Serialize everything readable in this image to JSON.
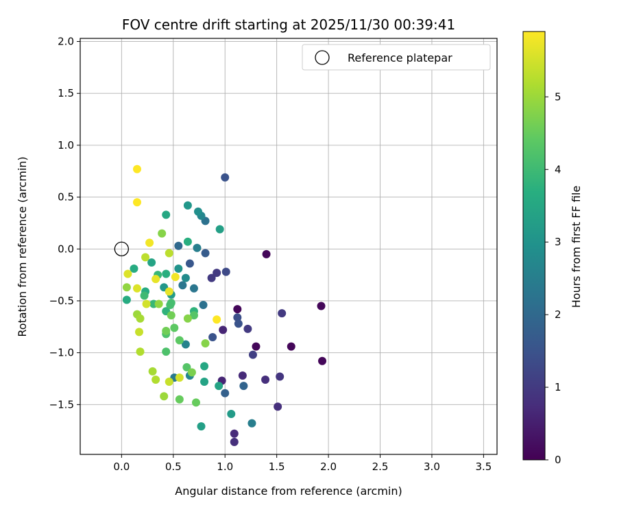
{
  "chart_data": {
    "type": "scatter",
    "title": "FOV centre drift starting at 2025/11/30 00:39:41",
    "xlabel": "Angular distance from reference (arcmin)",
    "ylabel": "Rotation from reference (arcmin)",
    "xlim": [
      -0.4,
      3.63
    ],
    "ylim": [
      -1.98,
      2.03
    ],
    "xticks": [
      0.0,
      0.5,
      1.0,
      1.5,
      2.0,
      2.5,
      3.0,
      3.5
    ],
    "xtick_labels": [
      "0.0",
      "0.5",
      "1.0",
      "1.5",
      "2.0",
      "2.5",
      "3.0",
      "3.5"
    ],
    "yticks": [
      2.0,
      1.5,
      1.0,
      0.5,
      0.0,
      -0.5,
      -1.0,
      -1.5
    ],
    "ytick_labels": [
      "2.0",
      "1.5",
      "1.0",
      "0.5",
      "0.0",
      "−0.5",
      "−1.0",
      "−1.5"
    ],
    "grid": true,
    "legend": {
      "position": "top-right",
      "entries": [
        "Reference platepar"
      ]
    },
    "reference_point": {
      "x": 0.0,
      "y": 0.0
    },
    "colorbar": {
      "label": "Hours from first FF file",
      "range": [
        0,
        5.9
      ],
      "ticks": [
        0,
        1,
        2,
        3,
        4,
        5
      ],
      "tick_labels": [
        "0",
        "1",
        "2",
        "3",
        "4",
        "5"
      ],
      "colormap": "viridis"
    },
    "points": [
      {
        "x": 1.4,
        "y": -0.05,
        "h": 0.1
      },
      {
        "x": 1.12,
        "y": -0.58,
        "h": 0.1
      },
      {
        "x": 1.3,
        "y": -0.94,
        "h": 0.1
      },
      {
        "x": 1.64,
        "y": -0.94,
        "h": 0.1
      },
      {
        "x": 1.93,
        "y": -0.55,
        "h": 0.1
      },
      {
        "x": 1.94,
        "y": -1.08,
        "h": 0.1
      },
      {
        "x": 0.98,
        "y": -0.78,
        "h": 0.6
      },
      {
        "x": 0.97,
        "y": -1.27,
        "h": 0.6
      },
      {
        "x": 1.17,
        "y": -1.22,
        "h": 0.7
      },
      {
        "x": 1.09,
        "y": -1.78,
        "h": 0.7
      },
      {
        "x": 1.09,
        "y": -1.86,
        "h": 0.8
      },
      {
        "x": 1.39,
        "y": -1.26,
        "h": 0.8
      },
      {
        "x": 1.51,
        "y": -1.52,
        "h": 0.8
      },
      {
        "x": 0.87,
        "y": -0.28,
        "h": 1.0
      },
      {
        "x": 0.92,
        "y": -0.23,
        "h": 1.0
      },
      {
        "x": 1.53,
        "y": -1.23,
        "h": 0.9
      },
      {
        "x": 1.55,
        "y": -0.62,
        "h": 1.0
      },
      {
        "x": 1.22,
        "y": -0.77,
        "h": 1.0
      },
      {
        "x": 1.27,
        "y": -1.02,
        "h": 1.1
      },
      {
        "x": 1.01,
        "y": -0.22,
        "h": 1.3
      },
      {
        "x": 1.12,
        "y": -0.66,
        "h": 1.4
      },
      {
        "x": 1.13,
        "y": -0.72,
        "h": 1.5
      },
      {
        "x": 0.88,
        "y": -0.85,
        "h": 1.5
      },
      {
        "x": 1.0,
        "y": 0.69,
        "h": 1.5
      },
      {
        "x": 0.66,
        "y": -0.14,
        "h": 1.6
      },
      {
        "x": 0.81,
        "y": -0.04,
        "h": 1.7
      },
      {
        "x": 1.0,
        "y": -1.39,
        "h": 1.8
      },
      {
        "x": 1.18,
        "y": -1.32,
        "h": 1.9
      },
      {
        "x": 0.55,
        "y": 0.03,
        "h": 2.0
      },
      {
        "x": 0.81,
        "y": 0.27,
        "h": 2.2
      },
      {
        "x": 0.79,
        "y": -0.54,
        "h": 2.2
      },
      {
        "x": 0.7,
        "y": -0.38,
        "h": 2.3
      },
      {
        "x": 0.59,
        "y": -0.35,
        "h": 2.3
      },
      {
        "x": 0.51,
        "y": -1.24,
        "h": 2.4
      },
      {
        "x": 1.26,
        "y": -1.68,
        "h": 2.5
      },
      {
        "x": 0.73,
        "y": 0.01,
        "h": 2.5
      },
      {
        "x": 0.62,
        "y": -0.92,
        "h": 2.6
      },
      {
        "x": 0.66,
        "y": -1.22,
        "h": 2.7
      },
      {
        "x": 0.77,
        "y": 0.32,
        "h": 2.7
      },
      {
        "x": 0.62,
        "y": -0.28,
        "h": 2.8
      },
      {
        "x": 0.74,
        "y": 0.36,
        "h": 2.9
      },
      {
        "x": 0.55,
        "y": -0.19,
        "h": 3.0
      },
      {
        "x": 0.64,
        "y": 0.42,
        "h": 3.1
      },
      {
        "x": 0.41,
        "y": -0.37,
        "h": 3.1
      },
      {
        "x": 0.48,
        "y": -0.44,
        "h": 3.2
      },
      {
        "x": 1.06,
        "y": -1.59,
        "h": 3.2
      },
      {
        "x": 0.95,
        "y": 0.19,
        "h": 3.3
      },
      {
        "x": 0.77,
        "y": -1.71,
        "h": 3.3
      },
      {
        "x": 0.29,
        "y": -0.13,
        "h": 3.4
      },
      {
        "x": 0.8,
        "y": -1.28,
        "h": 3.4
      },
      {
        "x": 0.94,
        "y": -1.32,
        "h": 3.4
      },
      {
        "x": 0.8,
        "y": -1.13,
        "h": 3.5
      },
      {
        "x": 0.43,
        "y": 0.33,
        "h": 3.5
      },
      {
        "x": 0.12,
        "y": -0.19,
        "h": 3.6
      },
      {
        "x": 0.05,
        "y": -0.49,
        "h": 3.6
      },
      {
        "x": 0.23,
        "y": -0.41,
        "h": 3.6
      },
      {
        "x": 0.43,
        "y": -0.24,
        "h": 3.7
      },
      {
        "x": 0.64,
        "y": 0.07,
        "h": 3.7
      },
      {
        "x": 0.7,
        "y": -0.6,
        "h": 3.8
      },
      {
        "x": 0.43,
        "y": -0.6,
        "h": 3.8
      },
      {
        "x": 0.35,
        "y": -0.25,
        "h": 3.9
      },
      {
        "x": 0.31,
        "y": -0.53,
        "h": 3.9
      },
      {
        "x": 0.22,
        "y": -0.45,
        "h": 4.0
      },
      {
        "x": 0.48,
        "y": -0.52,
        "h": 4.1
      },
      {
        "x": 0.47,
        "y": -0.54,
        "h": 4.1
      },
      {
        "x": 0.43,
        "y": -0.82,
        "h": 4.2
      },
      {
        "x": 0.43,
        "y": -0.99,
        "h": 4.2
      },
      {
        "x": 0.63,
        "y": -1.14,
        "h": 4.3
      },
      {
        "x": 0.7,
        "y": -0.64,
        "h": 4.3
      },
      {
        "x": 0.56,
        "y": -0.88,
        "h": 4.4
      },
      {
        "x": 0.51,
        "y": -0.76,
        "h": 4.4
      },
      {
        "x": 0.56,
        "y": -1.45,
        "h": 4.5
      },
      {
        "x": 0.72,
        "y": -1.48,
        "h": 4.5
      },
      {
        "x": 0.43,
        "y": -0.79,
        "h": 4.6
      },
      {
        "x": 0.48,
        "y": -0.64,
        "h": 4.6
      },
      {
        "x": 0.68,
        "y": -1.19,
        "h": 4.7
      },
      {
        "x": 0.39,
        "y": 0.15,
        "h": 4.8
      },
      {
        "x": 0.64,
        "y": -0.67,
        "h": 4.8
      },
      {
        "x": 0.81,
        "y": -0.91,
        "h": 4.8
      },
      {
        "x": 0.05,
        "y": -0.37,
        "h": 4.9
      },
      {
        "x": 0.36,
        "y": -0.53,
        "h": 4.9
      },
      {
        "x": 0.41,
        "y": -1.42,
        "h": 5.0
      },
      {
        "x": 0.15,
        "y": -0.63,
        "h": 5.0
      },
      {
        "x": 0.18,
        "y": -0.67,
        "h": 5.1
      },
      {
        "x": 0.3,
        "y": -1.18,
        "h": 5.1
      },
      {
        "x": 0.33,
        "y": -1.26,
        "h": 5.2
      },
      {
        "x": 0.18,
        "y": -0.99,
        "h": 5.2
      },
      {
        "x": 0.46,
        "y": -0.04,
        "h": 5.3
      },
      {
        "x": 0.23,
        "y": -0.08,
        "h": 5.3
      },
      {
        "x": 0.17,
        "y": -0.8,
        "h": 5.4
      },
      {
        "x": 0.46,
        "y": -1.28,
        "h": 5.4
      },
      {
        "x": 0.56,
        "y": -1.24,
        "h": 5.5
      },
      {
        "x": 0.24,
        "y": -0.53,
        "h": 5.5
      },
      {
        "x": 0.15,
        "y": -0.38,
        "h": 5.6
      },
      {
        "x": 0.06,
        "y": -0.24,
        "h": 5.6
      },
      {
        "x": 0.33,
        "y": -0.29,
        "h": 5.7
      },
      {
        "x": 0.46,
        "y": -0.41,
        "h": 5.7
      },
      {
        "x": 0.27,
        "y": 0.06,
        "h": 5.8
      },
      {
        "x": 0.52,
        "y": -0.27,
        "h": 5.8
      },
      {
        "x": 0.92,
        "y": -0.68,
        "h": 5.9
      },
      {
        "x": 0.15,
        "y": 0.45,
        "h": 5.9
      },
      {
        "x": 0.15,
        "y": 0.77,
        "h": 5.9
      }
    ]
  }
}
